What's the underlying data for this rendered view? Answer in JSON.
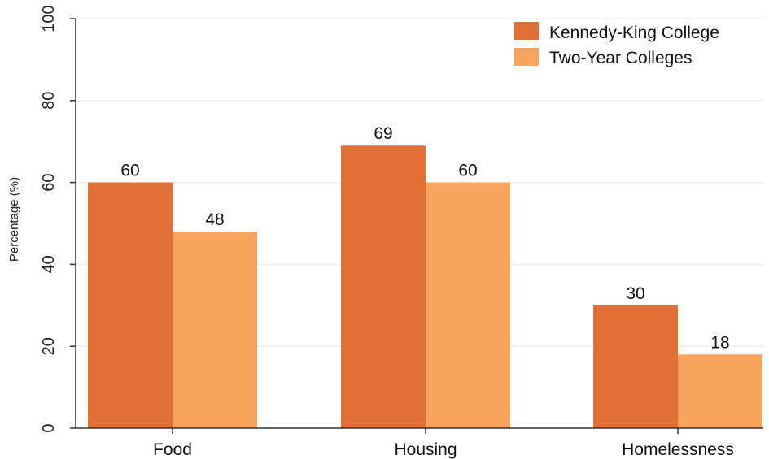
{
  "chart_data": {
    "type": "bar",
    "categories": [
      "Food",
      "Housing",
      "Homelessness"
    ],
    "series": [
      {
        "name": "Kennedy-King College",
        "values": [
          60,
          69,
          30
        ],
        "color": "#e07035"
      },
      {
        "name": "Two-Year Colleges",
        "values": [
          48,
          60,
          18
        ],
        "color": "#f8a35e"
      }
    ],
    "value_labels": [
      [
        "60",
        "69",
        "30"
      ],
      [
        "48",
        "60",
        "18"
      ]
    ],
    "ylabel": "Percentage (%)",
    "xlabel": "",
    "ylim": [
      0,
      100
    ],
    "yticks": [
      0,
      20,
      40,
      60,
      80,
      100
    ],
    "ytick_labels": [
      "0",
      "20",
      "40",
      "60",
      "80",
      "100"
    ],
    "grid": true,
    "legend_position": "top-right",
    "gridline_color": "#eeeeee",
    "axis_color": "#333333"
  }
}
